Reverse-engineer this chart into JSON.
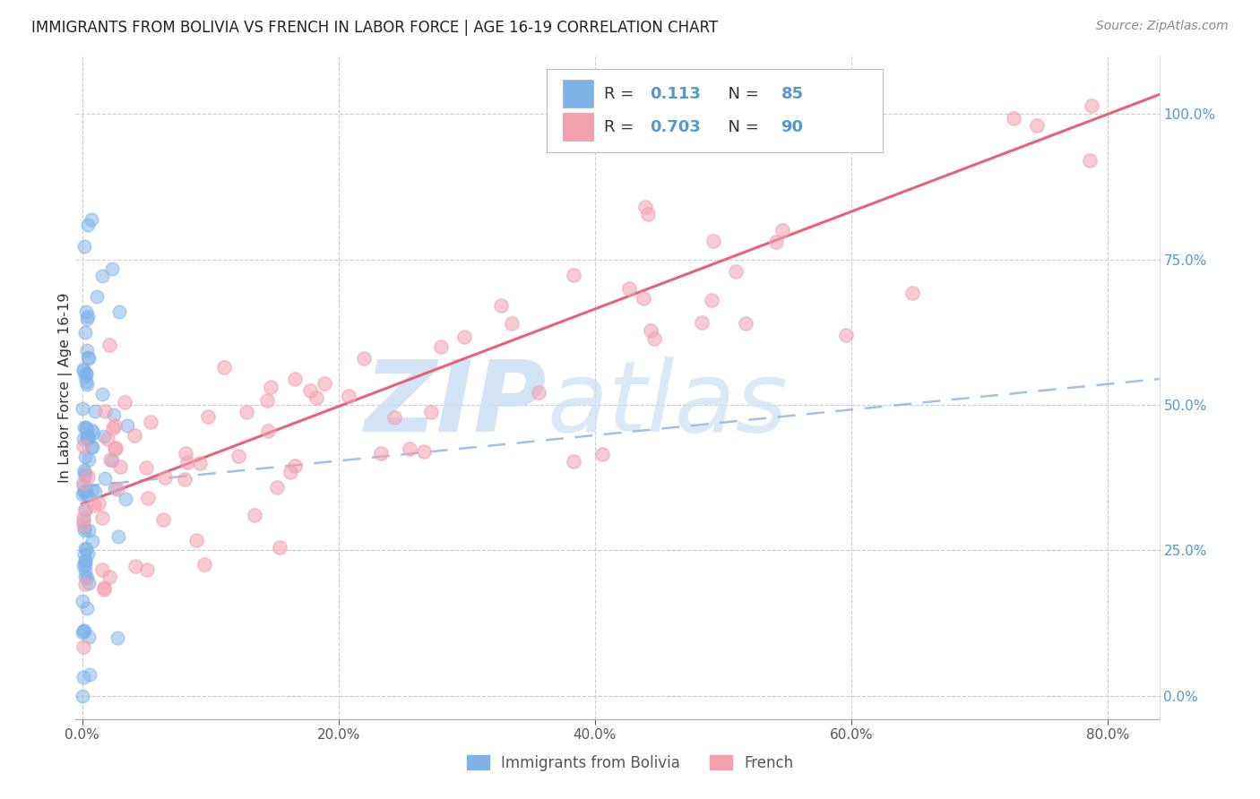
{
  "title": "IMMIGRANTS FROM BOLIVIA VS FRENCH IN LABOR FORCE | AGE 16-19 CORRELATION CHART",
  "source": "Source: ZipAtlas.com",
  "x_min": -0.005,
  "x_max": 0.84,
  "y_min": -0.04,
  "y_max": 1.1,
  "bolivia_color": "#7eb3e8",
  "french_color": "#f4a0b0",
  "bolivia_line_color": "#99bbdd",
  "french_line_color": "#e8607a",
  "bolivia_R": 0.113,
  "bolivia_N": 85,
  "french_R": 0.703,
  "french_N": 90,
  "watermark_zip_color": "#cce0f5",
  "watermark_atlas_color": "#cce0f5",
  "legend_label_bolivia": "Immigrants from Bolivia",
  "legend_label_french": "French",
  "ylabel": "In Labor Force | Age 16-19",
  "right_tick_color": "#5599cc",
  "grid_color": "#cccccc",
  "grid_style": "--"
}
